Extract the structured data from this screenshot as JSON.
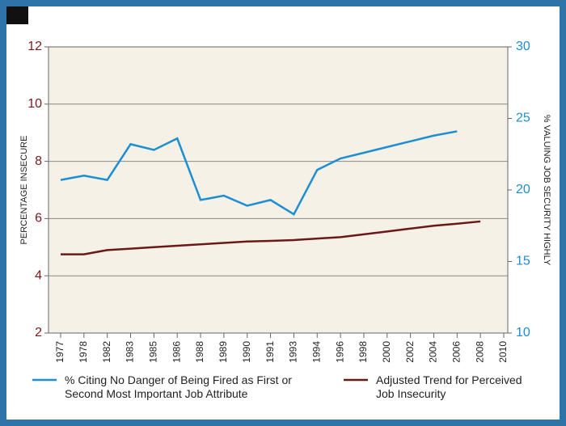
{
  "chart_data": {
    "type": "line",
    "y_label": "PERCENTAGE INSECURE",
    "y2_label": "% VALUING JOB SECURITY HIGHLY",
    "categories": [
      "1977",
      "1978",
      "1982",
      "1983",
      "1985",
      "1986",
      "1988",
      "1989",
      "1990",
      "1991",
      "1993",
      "1994",
      "1996",
      "1998",
      "2000",
      "2002",
      "2004",
      "2006",
      "2008",
      "2010"
    ],
    "ylim": [
      2,
      12
    ],
    "yticks": [
      2,
      4,
      6,
      8,
      10,
      12
    ],
    "y2lim": [
      10,
      30
    ],
    "y2ticks": [
      10,
      15,
      20,
      25,
      30
    ],
    "grid": true,
    "series": [
      {
        "name": "% Citing No Danger of Being Fired as First or Second Most Important Job Attribute",
        "color": "#1b8fd2",
        "axis": "y2",
        "values": [
          20.7,
          21.0,
          20.7,
          23.2,
          22.8,
          23.6,
          19.3,
          19.6,
          18.9,
          19.3,
          18.3,
          21.4,
          22.2,
          22.6,
          23.0,
          23.4,
          23.8,
          24.1,
          null,
          null
        ]
      },
      {
        "name": "Adjusted Trend for Perceived Job Insecurity",
        "color": "#6b1818",
        "values": [
          4.75,
          4.75,
          4.9,
          4.95,
          5.0,
          5.05,
          5.1,
          5.15,
          5.2,
          5.22,
          5.25,
          5.3,
          5.35,
          5.45,
          5.55,
          5.65,
          5.75,
          5.82,
          5.9,
          null
        ]
      }
    ]
  }
}
